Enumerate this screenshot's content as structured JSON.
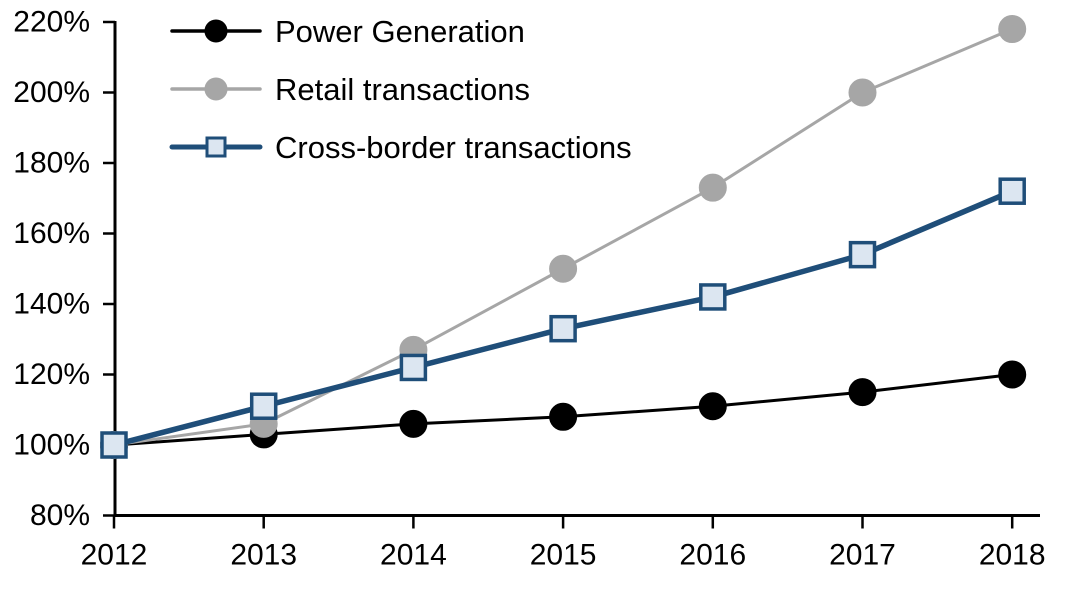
{
  "chart_data": {
    "type": "line",
    "title": "",
    "x_axis": {
      "tick_labels": [
        "2012",
        "2013",
        "2014",
        "2015",
        "2016",
        "2017",
        "2018"
      ]
    },
    "y_axis": {
      "min": 80,
      "max": 220,
      "step": 20,
      "format": "percent",
      "tick_labels": [
        "220%",
        "200%",
        "180%",
        "160%",
        "140%",
        "120%",
        "100%",
        "80%"
      ]
    },
    "grid": false,
    "legend_position": "top-left",
    "background_color": "#FFFFFF",
    "axis_color": "#000000",
    "series": [
      {
        "name": "Power Generation",
        "line_color": "#000000",
        "line_width": 3,
        "marker": "circle",
        "marker_fill": "#000000",
        "marker_stroke": "#000000",
        "values": [
          100,
          103,
          106,
          108,
          111,
          115,
          120
        ]
      },
      {
        "name": "Retail transactions",
        "line_color": "#A6A6A6",
        "line_width": 3,
        "marker": "circle",
        "marker_fill": "#A6A6A6",
        "marker_stroke": "#A6A6A6",
        "values": [
          100,
          106,
          127,
          150,
          173,
          200,
          218
        ]
      },
      {
        "name": "Cross-border transactions",
        "line_color": "#1F4E79",
        "line_width": 5.5,
        "marker": "square",
        "marker_fill": "#DCE6F1",
        "marker_stroke": "#1F4E79",
        "values": [
          100,
          111,
          122,
          133,
          142,
          154,
          172
        ]
      }
    ]
  }
}
